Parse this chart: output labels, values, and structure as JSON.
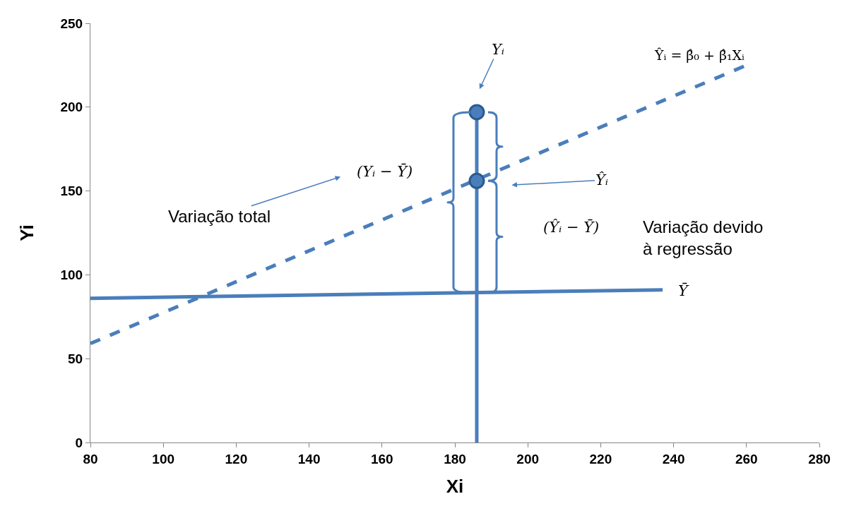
{
  "chart_data": {
    "type": "line",
    "xlabel": "Xi",
    "ylabel": "Yi",
    "xlim": [
      80,
      280
    ],
    "xticks": [
      80,
      100,
      120,
      140,
      160,
      180,
      200,
      220,
      240,
      260,
      280
    ],
    "ylim": [
      0,
      250
    ],
    "yticks": [
      0,
      50,
      100,
      150,
      200,
      250
    ],
    "series": [
      {
        "color": "#4a7ebb",
        "line_style": "dashed",
        "x": [
          80,
          260
        ],
        "values": [
          59,
          225
        ]
      },
      {
        "color": "#4a7ebb",
        "line_style": "solid",
        "x": [
          80,
          237
        ],
        "values": [
          86,
          91
        ]
      },
      {
        "color": "#4a7ebb",
        "line_style": "solid",
        "x": [
          186,
          186
        ],
        "values": [
          0,
          197
        ]
      },
      {
        "type": "scatter",
        "color": "#4a7ebb",
        "marker": "circle",
        "x": [
          186,
          186
        ],
        "values": [
          197,
          156
        ]
      }
    ],
    "annotations": [
      "Yᵢ",
      "Ŷᵢ = β̂₀ + β̂₁Xᵢ",
      "(Yᵢ − Ȳ)",
      "Variação total",
      "Ŷᵢ",
      "(Ŷᵢ − Ȳ)",
      "Variação devido\nà regressão",
      "Ȳ"
    ]
  }
}
